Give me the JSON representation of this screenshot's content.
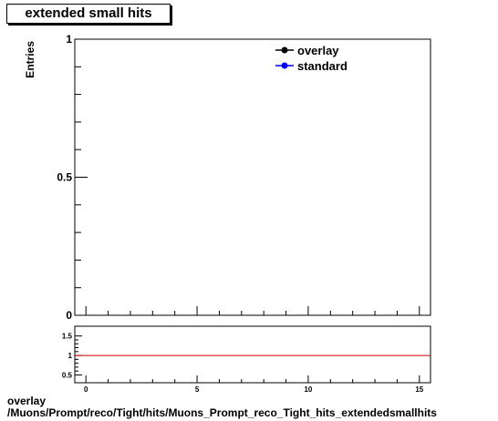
{
  "title": "extended small hits",
  "footer": {
    "line1": "overlay",
    "line2": "/Muons/Prompt/reco/Tight/hits/Muons_Prompt_reco_Tight_hits_extendedsmallhits"
  },
  "chart_data": [
    {
      "type": "line",
      "title": "extended small hits",
      "ylabel": "Entries",
      "xlabel": "",
      "xlim": [
        -0.5,
        15.5
      ],
      "ylim": [
        0,
        1
      ],
      "y_ticks": [
        0,
        0.5,
        1
      ],
      "y_tick_labels": [
        "0",
        "0.5",
        "1"
      ],
      "legend": {
        "position": "top-right",
        "entries": [
          {
            "name": "overlay",
            "color": "#000000"
          },
          {
            "name": "standard",
            "color": "#0000ff"
          }
        ]
      },
      "series": [
        {
          "name": "overlay",
          "values": []
        },
        {
          "name": "standard",
          "values": []
        }
      ]
    },
    {
      "type": "line",
      "xlim": [
        -0.5,
        15.5
      ],
      "ylim": [
        0.3,
        1.75
      ],
      "x_ticks": [
        0,
        5,
        10,
        15
      ],
      "x_tick_labels": [
        "0",
        "5",
        "10",
        "15"
      ],
      "y_ticks": [
        0.5,
        1,
        1.5
      ],
      "y_tick_labels": [
        "0.5",
        "1",
        "1.5"
      ],
      "reference_line": {
        "y": 1,
        "color": "#cc0000"
      }
    }
  ]
}
